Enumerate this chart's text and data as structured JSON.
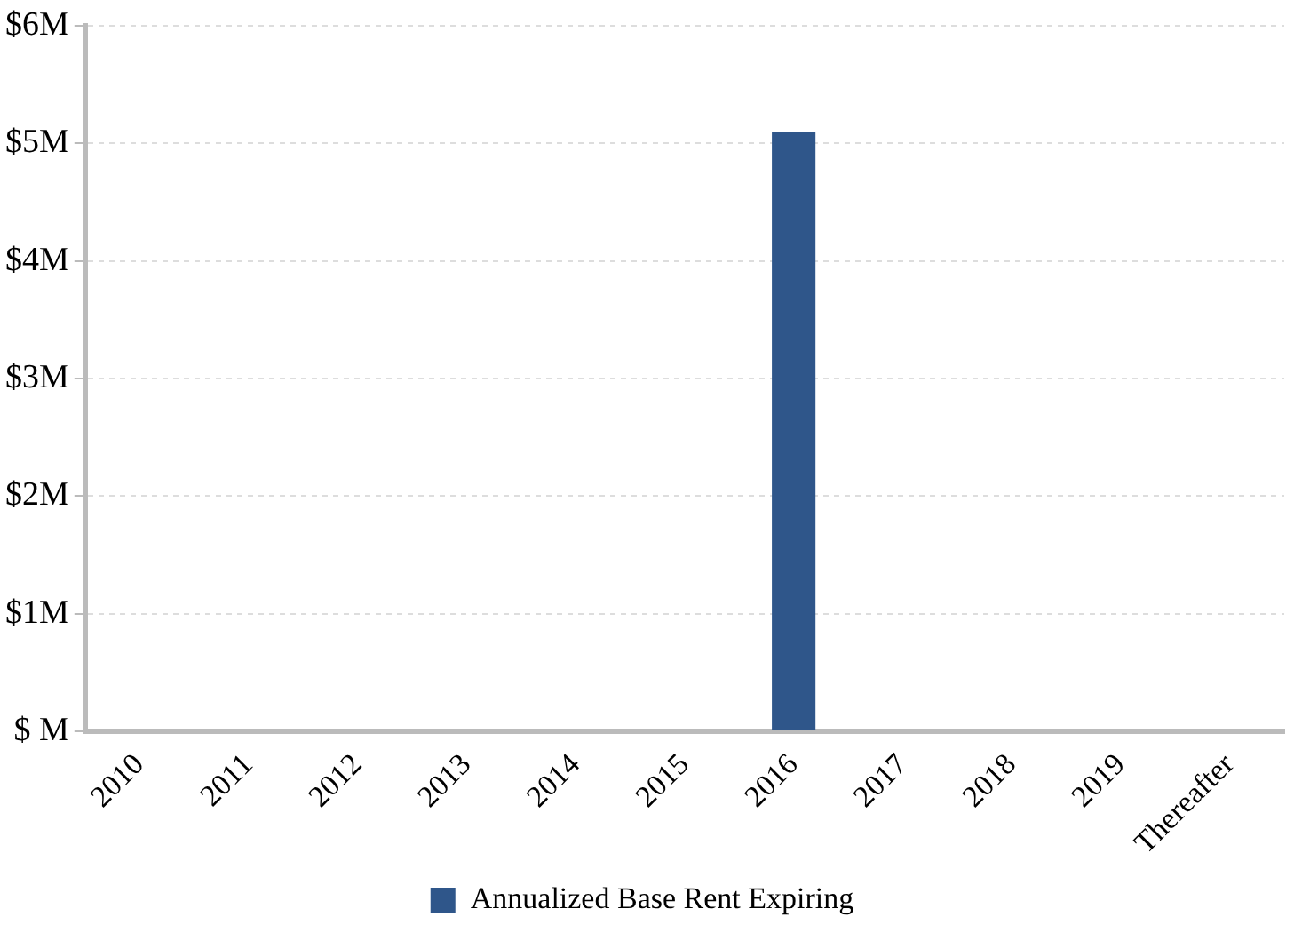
{
  "chart_data": {
    "type": "bar",
    "categories": [
      "2010",
      "2011",
      "2012",
      "2013",
      "2014",
      "2015",
      "2016",
      "2017",
      "2018",
      "2019",
      "Thereafter"
    ],
    "series": [
      {
        "name": "Annualized Base Rent Expiring",
        "color": "#2f568a",
        "values": [
          0,
          0,
          0,
          0,
          0,
          0,
          5.1,
          0,
          0,
          0,
          0
        ]
      }
    ],
    "ylim": [
      0,
      6
    ],
    "yticks": [
      {
        "value": 0,
        "label": "$ M"
      },
      {
        "value": 1,
        "label": "$1M"
      },
      {
        "value": 2,
        "label": "$2M"
      },
      {
        "value": 3,
        "label": "$3M"
      },
      {
        "value": 4,
        "label": "$4M"
      },
      {
        "value": 5,
        "label": "$5M"
      },
      {
        "value": 6,
        "label": "$6M"
      }
    ],
    "grid": "y",
    "legend": "bottom"
  }
}
